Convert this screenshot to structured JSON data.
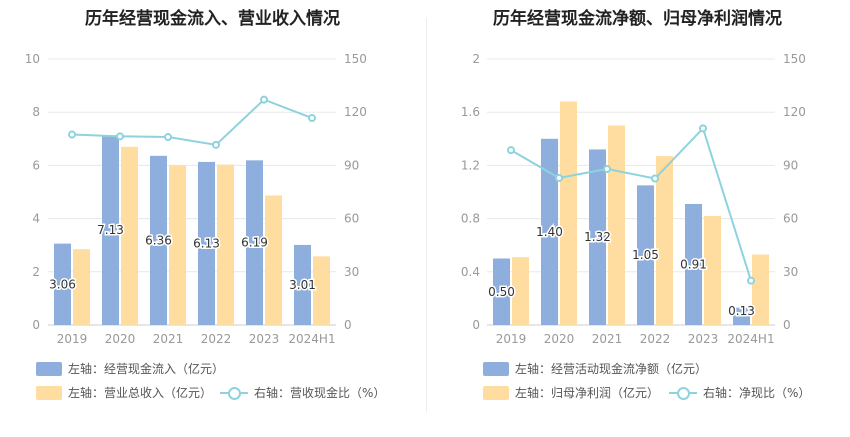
{
  "colors": {
    "bar_primary": "#8eaedd",
    "bar_secondary": "#ffdca0",
    "line": "#8dd3de",
    "axis_text": "#999999",
    "grid": "#e8e8e8"
  },
  "chart_data": [
    {
      "type": "bar",
      "title": "历年经营现金流入、营业收入情况",
      "categories": [
        "2019",
        "2020",
        "2021",
        "2022",
        "2023",
        "2024H1"
      ],
      "series": [
        {
          "name": "左轴：经营现金流入（亿元）",
          "axis": "left",
          "kind": "bar",
          "values": [
            3.06,
            7.13,
            6.36,
            6.13,
            6.19,
            3.01
          ],
          "labels": [
            "3.06",
            "7.13",
            "6.36",
            "6.13",
            "6.19",
            "3.01"
          ]
        },
        {
          "name": "左轴：营业总收入（亿元）",
          "axis": "left",
          "kind": "bar",
          "values": [
            2.85,
            6.7,
            6.0,
            6.03,
            4.87,
            2.58
          ]
        },
        {
          "name": "右轴：营收现金比（%）",
          "axis": "right",
          "kind": "line",
          "values": [
            107.4,
            106.4,
            106.0,
            101.6,
            127.1,
            116.7
          ]
        }
      ],
      "y_left": {
        "min": 0,
        "max": 10,
        "ticks": [
          "0",
          "2",
          "4",
          "6",
          "8",
          "10"
        ]
      },
      "y_right": {
        "min": 0,
        "max": 150,
        "ticks": [
          "0",
          "30",
          "60",
          "90",
          "120",
          "150"
        ]
      },
      "grid": true,
      "legend_position": "bottom-left"
    },
    {
      "type": "bar",
      "title": "历年经营现金流净额、归母净利润情况",
      "categories": [
        "2019",
        "2020",
        "2021",
        "2022",
        "2023",
        "2024H1"
      ],
      "series": [
        {
          "name": "左轴：经营活动现金流净额（亿元）",
          "axis": "left",
          "kind": "bar",
          "values": [
            0.5,
            1.4,
            1.32,
            1.05,
            0.91,
            0.13
          ],
          "labels": [
            "0.50",
            "1.40",
            "1.32",
            "1.05",
            "0.91",
            "0.13"
          ]
        },
        {
          "name": "左轴：归母净利润（亿元）",
          "axis": "left",
          "kind": "bar",
          "values": [
            0.51,
            1.68,
            1.5,
            1.27,
            0.82,
            0.53
          ]
        },
        {
          "name": "右轴：净现比（%）",
          "axis": "right",
          "kind": "line",
          "values": [
            98.6,
            82.9,
            88.0,
            82.6,
            110.9,
            25.0
          ]
        }
      ],
      "y_left": {
        "min": 0,
        "max": 2,
        "ticks": [
          "0",
          "0.4",
          "0.8",
          "1.2",
          "1.6",
          "2"
        ]
      },
      "y_right": {
        "min": 0,
        "max": 150,
        "ticks": [
          "0",
          "30",
          "60",
          "90",
          "120",
          "150"
        ]
      },
      "grid": true,
      "legend_position": "bottom-left"
    }
  ]
}
